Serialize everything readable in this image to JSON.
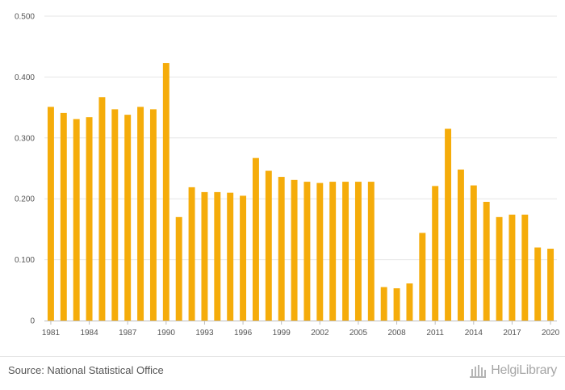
{
  "chart_data": {
    "type": "bar",
    "title": "",
    "xlabel": "",
    "ylabel": "",
    "ylim": [
      0,
      0.5
    ],
    "y_ticks": [
      "0",
      "0.100",
      "0.200",
      "0.300",
      "0.400",
      "0.500"
    ],
    "y_tick_values": [
      0,
      0.1,
      0.2,
      0.3,
      0.4,
      0.5
    ],
    "x_tick_labels": [
      "1981",
      "1984",
      "1987",
      "1990",
      "1993",
      "1996",
      "1999",
      "2002",
      "2005",
      "2008",
      "2011",
      "2014",
      "2017",
      "2020"
    ],
    "grid": true,
    "bar_color": "#f5ac0a",
    "categories": [
      "1981",
      "1982",
      "1983",
      "1984",
      "1985",
      "1986",
      "1987",
      "1988",
      "1989",
      "1990",
      "1991",
      "1992",
      "1993",
      "1994",
      "1995",
      "1996",
      "1997",
      "1998",
      "1999",
      "2000",
      "2001",
      "2002",
      "2003",
      "2004",
      "2005",
      "2006",
      "2007",
      "2008",
      "2009",
      "2010",
      "2011",
      "2012",
      "2013",
      "2014",
      "2015",
      "2016",
      "2017",
      "2018",
      "2019",
      "2020"
    ],
    "values": [
      0.351,
      0.341,
      0.331,
      0.334,
      0.367,
      0.347,
      0.338,
      0.351,
      0.347,
      0.423,
      0.17,
      0.219,
      0.211,
      0.211,
      0.21,
      0.205,
      0.267,
      0.246,
      0.236,
      0.231,
      0.228,
      0.226,
      0.228,
      0.228,
      0.228,
      0.228,
      0.055,
      0.053,
      0.061,
      0.144,
      0.221,
      0.315,
      0.248,
      0.222,
      0.195,
      0.17,
      0.174,
      0.174,
      0.12,
      0.118
    ]
  },
  "footer": {
    "source": "Source: National Statistical Office",
    "brand": "HelgiLibrary"
  }
}
